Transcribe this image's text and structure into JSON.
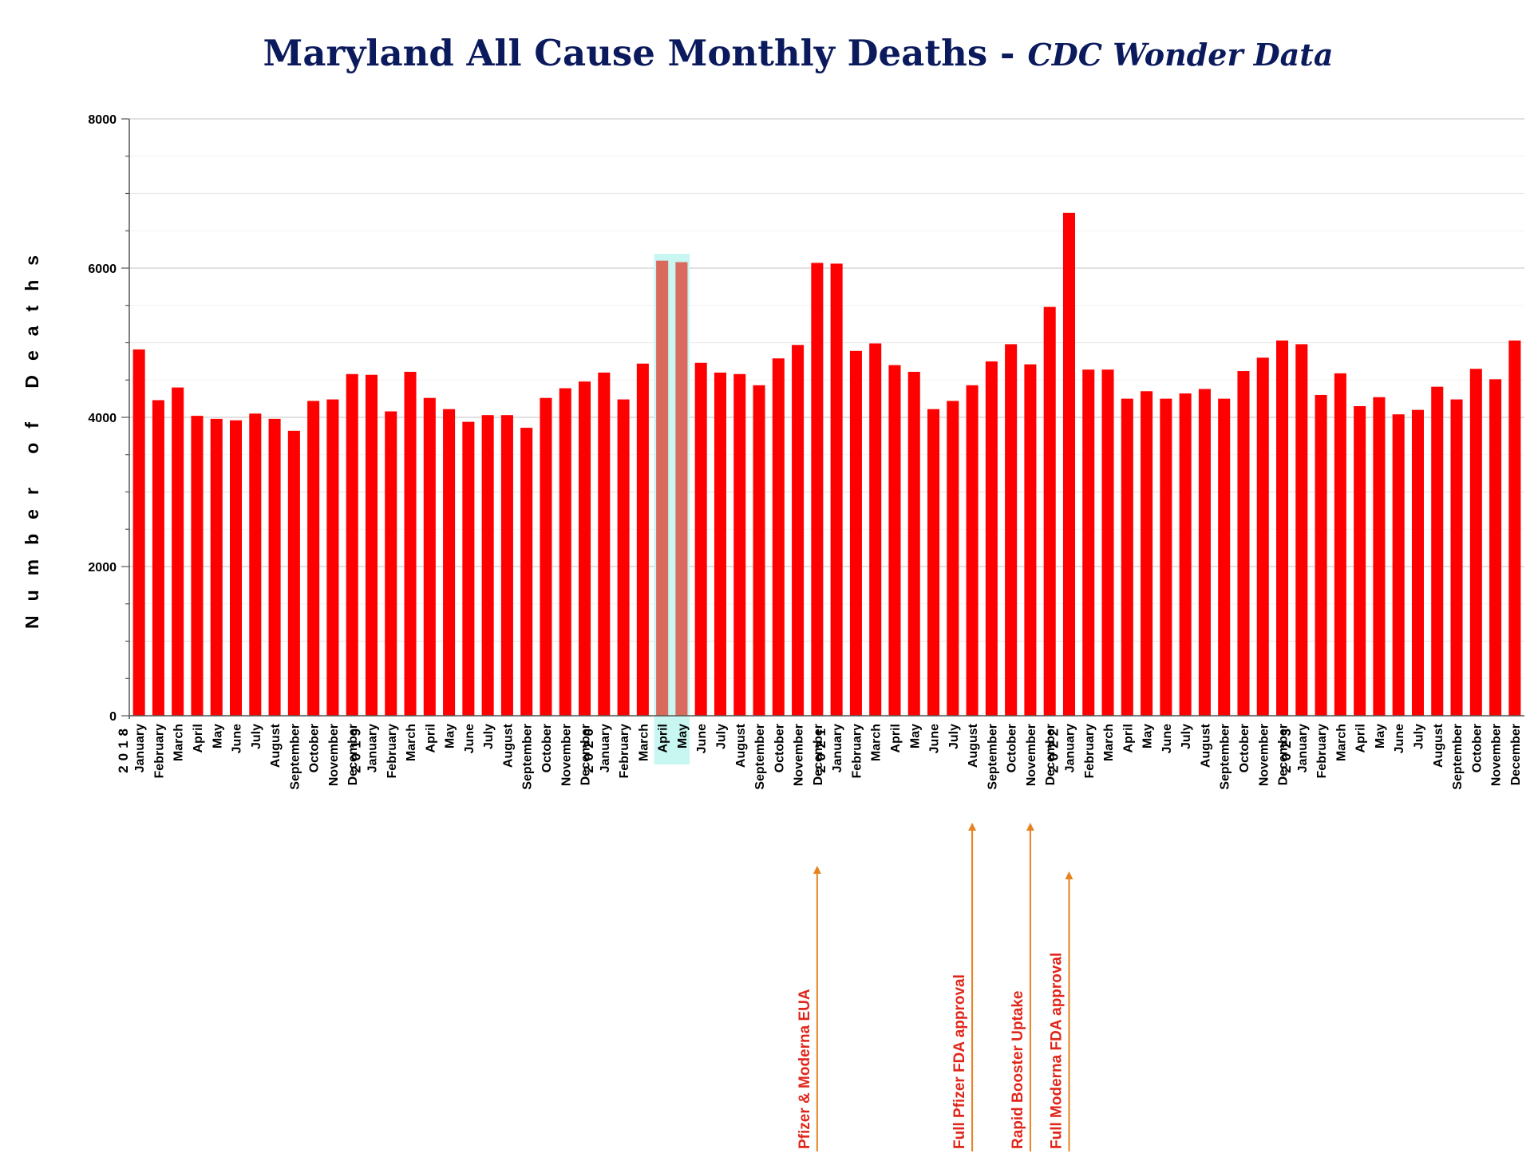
{
  "title": "Maryland All Cause Monthly Deaths -",
  "subtitle": "CDC Wonder Data",
  "colors": {
    "bar": "#ff0000",
    "highlight_bar": "#d96a5e",
    "highlight_box": "#c8f7f2",
    "title": "#0b1a5c",
    "arrow": "#e8821f",
    "annotation_text": "#e0261a"
  },
  "chart_data": {
    "type": "bar",
    "title": "Maryland All Cause Monthly Deaths - CDC Wonder Data",
    "ylabel": "Number of Deaths",
    "xlabel": "",
    "ylim": [
      0,
      8000
    ],
    "yticks": [
      0,
      2000,
      4000,
      6000,
      8000
    ],
    "grid": true,
    "categories": [
      "January",
      "February",
      "March",
      "April",
      "May",
      "June",
      "July",
      "August",
      "September",
      "October",
      "November",
      "December",
      "January",
      "February",
      "March",
      "April",
      "May",
      "June",
      "July",
      "August",
      "September",
      "October",
      "November",
      "December",
      "January",
      "February",
      "March",
      "April",
      "May",
      "June",
      "July",
      "August",
      "September",
      "October",
      "November",
      "December",
      "January",
      "February",
      "March",
      "April",
      "May",
      "June",
      "July",
      "August",
      "September",
      "October",
      "November",
      "December",
      "January",
      "February",
      "March",
      "April",
      "May",
      "June",
      "July",
      "August",
      "September",
      "October",
      "November",
      "December",
      "January",
      "February",
      "March",
      "April",
      "May",
      "June",
      "July",
      "August",
      "September",
      "October",
      "November",
      "December"
    ],
    "years": [
      {
        "label": "2018",
        "month_index": 0
      },
      {
        "label": "2019",
        "month_index": 12
      },
      {
        "label": "2020",
        "month_index": 24
      },
      {
        "label": "2021",
        "month_index": 36
      },
      {
        "label": "2022",
        "month_index": 48
      },
      {
        "label": "2023",
        "month_index": 60
      }
    ],
    "values": [
      4910,
      4230,
      4400,
      4020,
      3980,
      3960,
      4050,
      3980,
      3820,
      4220,
      4240,
      4580,
      4570,
      4080,
      4610,
      4260,
      4110,
      3940,
      4030,
      4030,
      3860,
      4260,
      4390,
      4480,
      4600,
      4240,
      4720,
      6100,
      6080,
      4730,
      4600,
      4580,
      4430,
      4790,
      4970,
      6070,
      6060,
      4890,
      4990,
      4700,
      4610,
      4110,
      4220,
      4430,
      4750,
      4980,
      4710,
      5480,
      6740,
      4640,
      4640,
      4250,
      4350,
      4250,
      4320,
      4380,
      4250,
      4620,
      4800,
      5030,
      4980,
      4300,
      4590,
      4150,
      4270,
      4040,
      4100,
      4410,
      4240,
      4650,
      4510,
      5030
    ],
    "highlighted_indices": [
      27,
      28
    ],
    "annotations": [
      {
        "text": "Pfizer & Moderna EUA",
        "month_index": 35
      },
      {
        "text": "Full Pfizer FDA approval",
        "month_index": 43
      },
      {
        "text": "Rapid Booster Uptake",
        "month_index": 46
      },
      {
        "text": "Full Moderna FDA approval",
        "month_index": 48
      }
    ]
  }
}
